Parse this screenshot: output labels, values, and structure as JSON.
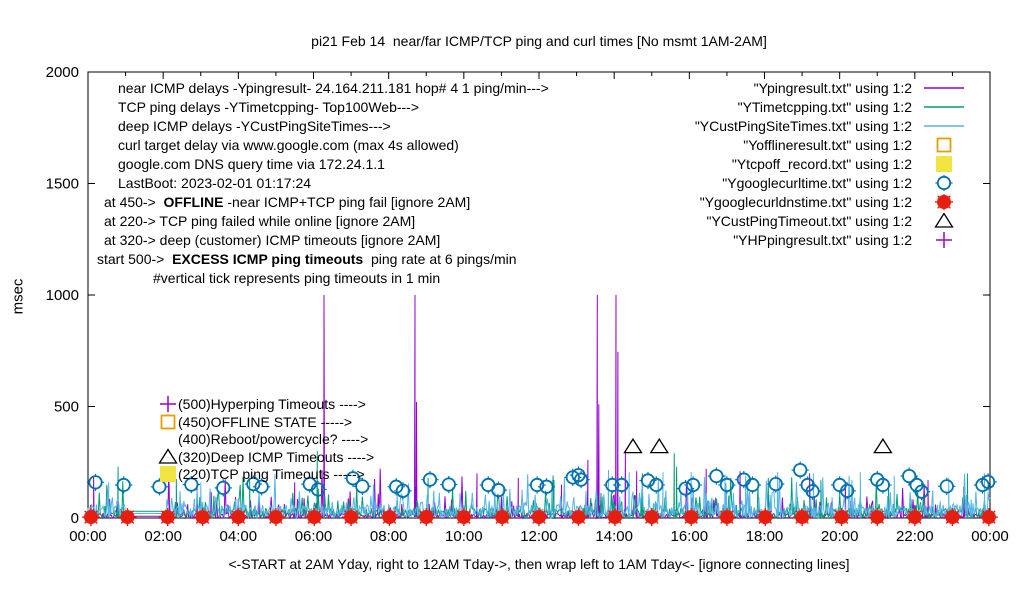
{
  "chart_data": {
    "type": "line",
    "title": "pi21 Feb 14  near/far ICMP/TCP ping and curl times [No msmt 1AM-2AM]",
    "xlabel": "<-START at 2AM Yday, right to 12AM Tday->, then wrap left to 1AM Tday<- [ignore connecting lines]",
    "ylabel": "msec",
    "xlim_hours": [
      0,
      24
    ],
    "ylim": [
      0,
      2000
    ],
    "x_tick_labels": [
      "00:00",
      "02:00",
      "04:00",
      "06:00",
      "08:00",
      "10:00",
      "12:00",
      "14:00",
      "16:00",
      "18:00",
      "20:00",
      "22:00",
      "00:00"
    ],
    "y_tick_values": [
      0,
      500,
      1000,
      1500,
      2000
    ],
    "grid": false,
    "legend_position": "top-right",
    "no_measurement_gap_hours": [
      1.0,
      2.05
    ],
    "series": [
      {
        "name": "\"Ypingresult.txt\" using 1:2",
        "color": "#9400d3",
        "style": "line",
        "noise": {
          "seed": 11,
          "step_min": 1.5,
          "base": 22,
          "p_mid": 0.09,
          "mid": 100,
          "p_high": 0.015,
          "high": 230,
          "gap_value": 8
        },
        "spikes": [
          [
            0.15,
            190
          ],
          [
            2.9,
            140
          ],
          [
            5.5,
            160
          ],
          [
            6.28,
            1000
          ],
          [
            8.7,
            1000
          ],
          [
            8.74,
            520
          ],
          [
            10.35,
            200
          ],
          [
            11.45,
            180
          ],
          [
            12.6,
            150
          ],
          [
            13.3,
            260
          ],
          [
            13.55,
            1000
          ],
          [
            13.59,
            510
          ],
          [
            14.05,
            1000
          ],
          [
            14.1,
            745
          ],
          [
            14.3,
            300
          ],
          [
            14.6,
            210
          ],
          [
            16.45,
            220
          ],
          [
            17.35,
            210
          ],
          [
            19.2,
            200
          ],
          [
            20.15,
            160
          ],
          [
            22.35,
            170
          ],
          [
            23.3,
            140
          ]
        ]
      },
      {
        "name": "\"YTimetcpping.txt\" using 1:2",
        "color": "#009e73",
        "style": "line",
        "noise": {
          "seed": 22,
          "step_min": 1.5,
          "base": 45,
          "p_mid": 0.12,
          "mid": 110,
          "p_high": 0.02,
          "high": 200,
          "gap_value": 30
        },
        "spikes": [
          [
            0.8,
            230
          ],
          [
            2.35,
            175
          ],
          [
            4.3,
            175
          ],
          [
            6.1,
            300
          ],
          [
            9.05,
            180
          ],
          [
            12.4,
            170
          ],
          [
            14.75,
            200
          ],
          [
            15.6,
            290
          ],
          [
            15.66,
            230
          ],
          [
            18.1,
            180
          ],
          [
            19.5,
            170
          ],
          [
            21.3,
            160
          ],
          [
            23.4,
            200
          ]
        ]
      },
      {
        "name": "\"YCustPingSiteTimes.txt\" using 1:2",
        "color": "#56b4e9",
        "style": "line",
        "noise": {
          "seed": 33,
          "step_min": 1.5,
          "base": 60,
          "p_mid": 0.16,
          "mid": 125,
          "p_high": 0.03,
          "high": 200,
          "gap_value": 20
        },
        "spikes": [
          [
            0.55,
            160
          ],
          [
            3.0,
            160
          ],
          [
            13.85,
            215
          ],
          [
            14.4,
            205
          ],
          [
            15.3,
            205
          ],
          [
            16.05,
            205
          ],
          [
            16.95,
            195
          ],
          [
            17.5,
            190
          ],
          [
            18.35,
            205
          ],
          [
            19.3,
            200
          ],
          [
            20.55,
            205
          ],
          [
            21.45,
            190
          ],
          [
            22.9,
            180
          ],
          [
            23.85,
            200
          ]
        ]
      },
      {
        "name": "\"Yofflineresult.txt\" using 1:2",
        "color": "#e69f00",
        "style": "square-open",
        "points": []
      },
      {
        "name": "\"Ytcpoff_record.txt\" using 1:2",
        "color": "#f0e442",
        "style": "square-filled",
        "points": []
      },
      {
        "name": "\"Ygooglecurltime.txt\" using 1:2",
        "color": "#0072b2",
        "style": "circle-open",
        "points": [
          [
            0.2,
            160
          ],
          [
            0.95,
            148
          ],
          [
            1.9,
            140
          ],
          [
            2.75,
            150
          ],
          [
            3.6,
            135
          ],
          [
            4.4,
            152
          ],
          [
            4.62,
            140
          ],
          [
            5.9,
            152
          ],
          [
            6.12,
            128
          ],
          [
            7.05,
            178
          ],
          [
            7.3,
            142
          ],
          [
            8.2,
            140
          ],
          [
            8.38,
            122
          ],
          [
            9.1,
            172
          ],
          [
            9.6,
            150
          ],
          [
            10.65,
            148
          ],
          [
            10.92,
            125
          ],
          [
            11.95,
            148
          ],
          [
            12.2,
            140
          ],
          [
            12.9,
            182
          ],
          [
            13.05,
            192
          ],
          [
            13.12,
            172
          ],
          [
            13.95,
            148
          ],
          [
            14.2,
            148
          ],
          [
            14.9,
            168
          ],
          [
            15.12,
            148
          ],
          [
            15.9,
            132
          ],
          [
            16.1,
            148
          ],
          [
            16.72,
            188
          ],
          [
            17.0,
            148
          ],
          [
            17.45,
            172
          ],
          [
            17.68,
            148
          ],
          [
            18.3,
            152
          ],
          [
            18.95,
            215
          ],
          [
            19.15,
            148
          ],
          [
            19.28,
            120
          ],
          [
            20.0,
            148
          ],
          [
            20.2,
            122
          ],
          [
            21.0,
            172
          ],
          [
            21.15,
            148
          ],
          [
            21.85,
            188
          ],
          [
            22.05,
            148
          ],
          [
            22.18,
            118
          ],
          [
            22.85,
            142
          ],
          [
            23.8,
            148
          ],
          [
            23.95,
            162
          ]
        ]
      },
      {
        "name": "\"Ygooglecurldnstime.txt\" using 1:2",
        "color": "#e51e10",
        "style": "circle-filled",
        "points": [
          [
            0.08,
            4
          ],
          [
            1.05,
            4
          ],
          [
            2.12,
            4
          ],
          [
            3.05,
            4
          ],
          [
            4.0,
            4
          ],
          [
            5.0,
            4
          ],
          [
            6.02,
            4
          ],
          [
            7.0,
            4
          ],
          [
            8.02,
            4
          ],
          [
            9.0,
            4
          ],
          [
            10.0,
            4
          ],
          [
            11.02,
            4
          ],
          [
            12.0,
            4
          ],
          [
            13.05,
            4
          ],
          [
            14.02,
            4
          ],
          [
            15.0,
            4
          ],
          [
            16.05,
            4
          ],
          [
            17.0,
            4
          ],
          [
            18.02,
            4
          ],
          [
            19.0,
            4
          ],
          [
            20.05,
            4
          ],
          [
            21.0,
            4
          ],
          [
            22.0,
            4
          ],
          [
            23.0,
            4
          ],
          [
            23.97,
            4
          ]
        ]
      },
      {
        "name": "\"YCustPingTimeout.txt\" using 1:2",
        "color": "#000000",
        "style": "triangle-open",
        "points": [
          [
            14.5,
            320
          ],
          [
            15.2,
            320
          ],
          [
            21.15,
            320
          ]
        ]
      },
      {
        "name": "\"YHPpingresult.txt\" using 1:2",
        "color": "#9400d3",
        "style": "plus",
        "points": []
      }
    ]
  },
  "annotations": {
    "lines": [
      {
        "pre": "near ICMP delays -Ypingresult- 24.164.211.181 hop# 4 1 ping/min--->",
        "indent": 21
      },
      {
        "pre": "TCP ping delays -YTimetcpping- Top100Web--->",
        "indent": 21
      },
      {
        "pre": "deep ICMP delays -YCustPingSiteTimes--->",
        "indent": 21
      },
      {
        "pre": "curl target delay via www.google.com (max 4s allowed)",
        "indent": 21
      },
      {
        "pre": "google.com DNS query time via 172.24.1.1",
        "indent": 21
      },
      {
        "pre": "LastBoot: 2023-02-01 01:17:24",
        "indent": 21
      },
      {
        "pre": "at 450->  ",
        "bold": "OFFLINE",
        "post": " -near ICMP+TCP ping fail [ignore 2AM]",
        "indent": 7
      },
      {
        "pre": "at 220-> TCP ping failed while online [ignore 2AM]",
        "indent": 7
      },
      {
        "pre": "at 320-> deep (customer) ICMP timeouts [ignore 2AM]",
        "indent": 7
      },
      {
        "pre": "start 500->  ",
        "bold": "EXCESS ICMP ping timeouts",
        "post": "  ping rate at 6 pings/min",
        "indent": 0
      },
      {
        "pre": "#vertical tick represents ping timeouts in 1 min",
        "indent": 56
      }
    ]
  },
  "plot_labels": {
    "items": [
      {
        "marker": "plus",
        "color": "#9400d3",
        "text": "(500)Hyperping Timeouts ---->"
      },
      {
        "marker": "square-open",
        "color": "#e69f00",
        "text": "(450)OFFLINE STATE ----->"
      },
      {
        "marker": "none",
        "color": "",
        "text": "(400)Reboot/powercycle? ---->"
      },
      {
        "marker": "triangle-open",
        "color": "#000000",
        "text": "(320)Deep ICMP Timeouts ---->"
      },
      {
        "marker": "square-filled",
        "color": "#f0e442",
        "text": "(220)TCP ping Timeouts ----->"
      }
    ]
  },
  "colors": {
    "background": "#ffffff",
    "axis": "#000000",
    "near_icmp": "#9400d3",
    "tcp_ping": "#009e73",
    "deep_icmp": "#56b4e9",
    "offline": "#e69f00",
    "tcpoff": "#f0e442",
    "curl": "#0072b2",
    "dns": "#e51e10",
    "cust_timeout": "#000000"
  }
}
